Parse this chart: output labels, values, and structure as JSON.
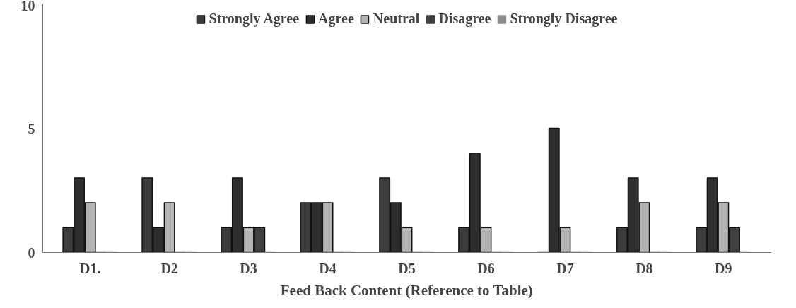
{
  "chart_data": {
    "type": "bar",
    "xlabel": "Feed Back Content (Reference to Table)",
    "categories": [
      "D1.",
      "D2",
      "D3",
      "D4",
      "D5",
      "D6",
      "D7",
      "D8",
      "D9"
    ],
    "series": [
      {
        "name": "Strongly Agree",
        "color": "#3c3c3c",
        "values": [
          1,
          3,
          1,
          2,
          3,
          1,
          0,
          1,
          1
        ]
      },
      {
        "name": "Agree",
        "color": "#2e2e2e",
        "values": [
          3,
          1,
          3,
          2,
          2,
          4,
          5,
          3,
          3
        ]
      },
      {
        "name": "Neutral",
        "color": "#b4b4b4",
        "values": [
          2,
          2,
          1,
          2,
          1,
          1,
          1,
          2,
          2
        ]
      },
      {
        "name": "Disagree",
        "color": "#404040",
        "values": [
          0,
          0,
          1,
          0,
          0,
          0,
          0,
          0,
          1
        ]
      },
      {
        "name": "Strongly Disagree",
        "color": "#8c8c8c",
        "values": [
          0,
          0,
          0,
          0,
          0,
          0,
          0,
          0,
          0
        ]
      }
    ],
    "ylim": [
      0,
      10
    ],
    "yticks": [
      0,
      5,
      10
    ],
    "grid": false,
    "legend": "top"
  }
}
